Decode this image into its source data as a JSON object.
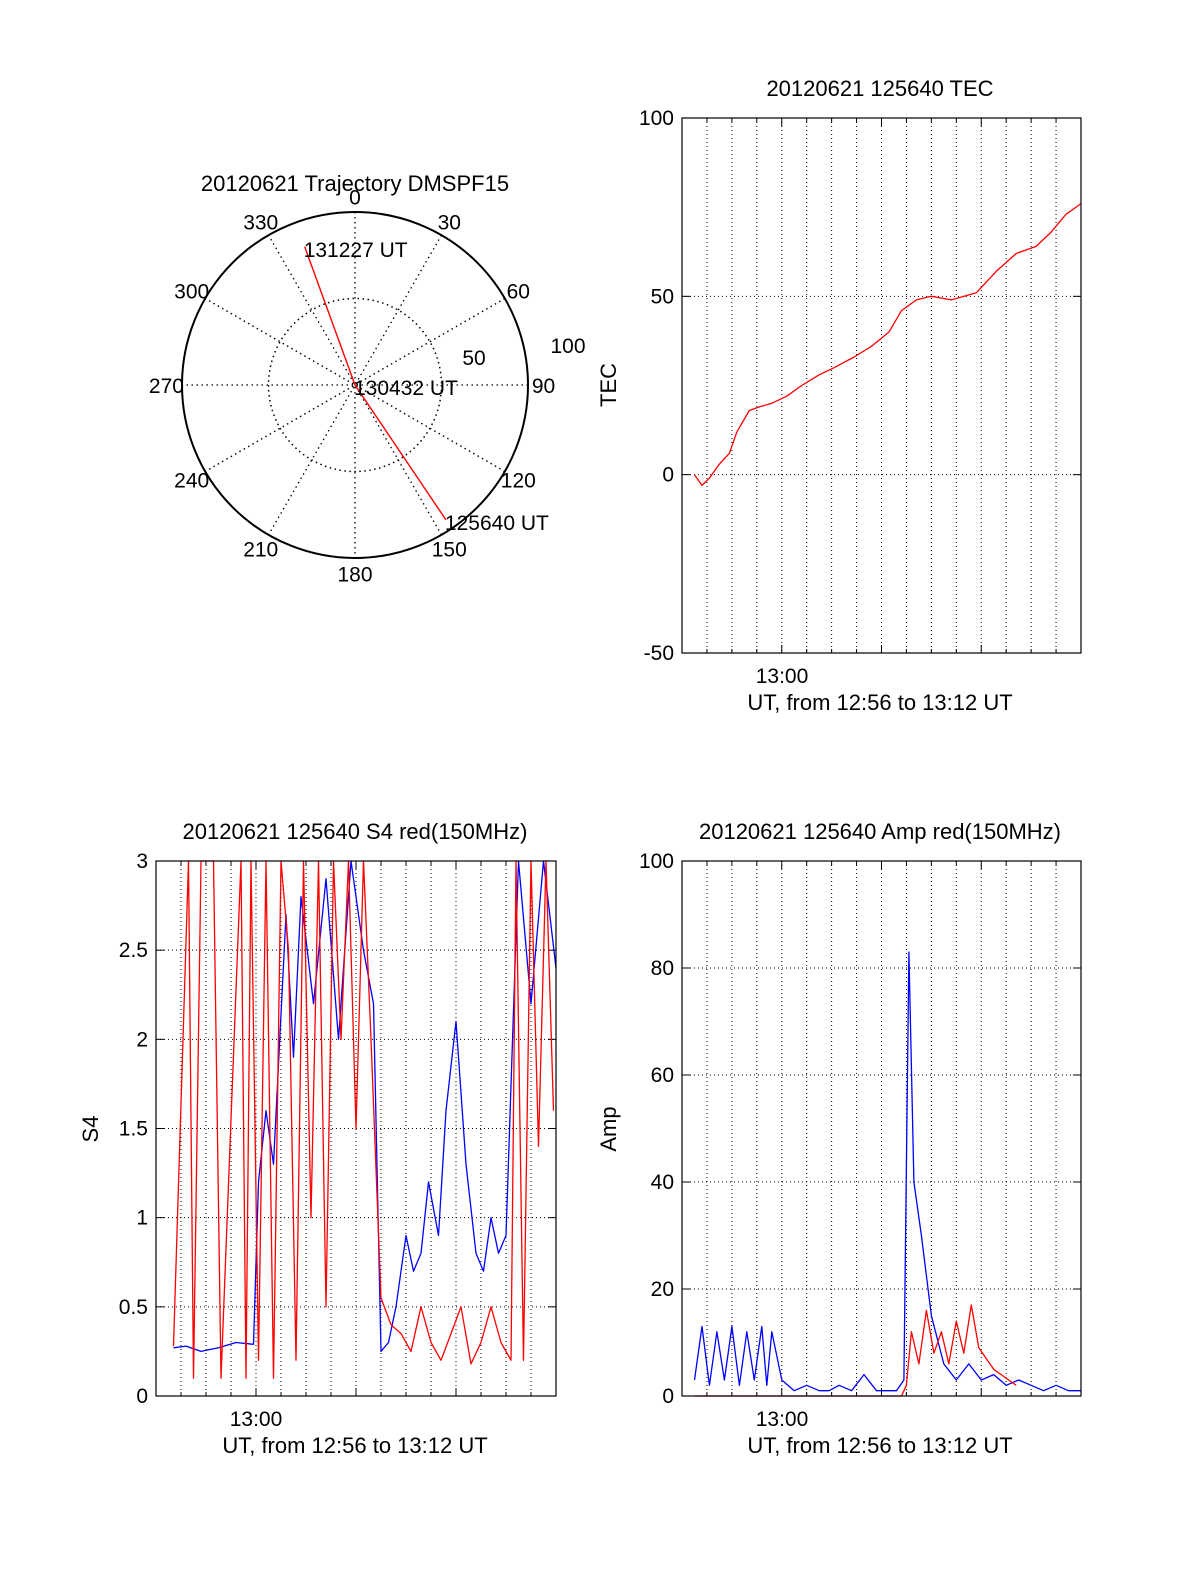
{
  "colors": {
    "red": "#ff0000",
    "blue": "#0000ff",
    "axis": "#000000",
    "grid": "#000000"
  },
  "chart_data": [
    {
      "type": "scatter",
      "subtype": "polar",
      "title": "20120621 Trajectory DMSPF15",
      "angle_labels": [
        "0",
        "30",
        "60",
        "90",
        "120",
        "150",
        "180",
        "210",
        "240",
        "270",
        "300",
        "330"
      ],
      "radial_labels": [
        "50",
        "100"
      ],
      "rlim": [
        0,
        100
      ],
      "grid": true,
      "series": [
        {
          "color": "red",
          "points": [
            {
              "azimuth": 146,
              "radius": 94
            },
            {
              "azimuth": 0,
              "radius": 0
            },
            {
              "azimuth": 340,
              "radius": 85
            }
          ]
        }
      ],
      "annotations": [
        {
          "text": "131227 UT",
          "azimuth": 340,
          "radius": 85
        },
        {
          "text": "130432 UT",
          "azimuth": 0,
          "radius": 0
        },
        {
          "text": "125640 UT",
          "azimuth": 146,
          "radius": 94
        }
      ]
    },
    {
      "type": "line",
      "title": "20120621 125640 TEC",
      "xlabel": "UT, from 12:56 to 13:12 UT",
      "ylabel": "TEC",
      "xtick_labels": [
        "13:00"
      ],
      "xlim": [
        0,
        16
      ],
      "ylim": [
        -50,
        100
      ],
      "yticks": [
        -50,
        0,
        50,
        100
      ],
      "grid": true,
      "series": [
        {
          "color": "red",
          "x": [
            0.5,
            0.8,
            1.1,
            1.5,
            1.9,
            2.2,
            2.7,
            3.1,
            3.6,
            4.2,
            4.8,
            5.5,
            6.1,
            6.9,
            7.6,
            8.3,
            8.8,
            9.4,
            10.0,
            10.8,
            11.8,
            12.6,
            13.4,
            14.2,
            14.8,
            15.4,
            16.0
          ],
          "y": [
            0,
            -3,
            -1,
            3,
            6,
            12,
            18,
            19,
            20,
            22,
            25,
            28,
            30,
            33,
            36,
            40,
            46,
            49,
            50,
            49,
            51,
            57,
            62,
            64,
            68,
            73,
            76
          ]
        }
      ]
    },
    {
      "type": "line",
      "title": "20120621 125640 S4 red(150MHz)",
      "xlabel": "UT, from 12:56 to 13:12 UT",
      "ylabel": "S4",
      "xtick_labels": [
        "13:00"
      ],
      "xlim": [
        0,
        16
      ],
      "ylim": [
        0,
        3
      ],
      "yticks": [
        "0",
        "0.5",
        "1",
        "1.5",
        "2",
        "2.5",
        "3"
      ],
      "grid": true,
      "series": [
        {
          "color": "blue",
          "x": [
            0.7,
            1.2,
            1.8,
            2.5,
            3.2,
            3.9,
            4.1,
            4.4,
            4.7,
            5.2,
            5.5,
            5.8,
            6.3,
            6.8,
            7.3,
            7.8,
            8.3,
            8.7,
            9.0,
            9.3,
            9.6,
            10.0,
            10.3,
            10.6,
            10.9,
            11.3,
            11.6,
            12.0,
            12.4,
            12.8,
            13.1,
            13.4,
            13.7,
            14.0,
            14.5,
            15.0,
            15.5,
            16.0
          ],
          "y": [
            0.27,
            0.28,
            0.25,
            0.27,
            0.3,
            0.29,
            1.2,
            1.6,
            1.3,
            2.7,
            1.9,
            2.8,
            2.2,
            2.9,
            2.0,
            3.0,
            2.5,
            2.2,
            0.25,
            0.3,
            0.5,
            0.9,
            0.7,
            0.8,
            1.2,
            0.9,
            1.6,
            2.1,
            1.3,
            0.8,
            0.7,
            1.0,
            0.8,
            0.9,
            3.0,
            2.2,
            3.0,
            2.4
          ]
        },
        {
          "color": "red",
          "x": [
            0.7,
            1.3,
            1.5,
            1.8,
            2.3,
            2.6,
            3.4,
            3.6,
            3.8,
            4.1,
            4.4,
            4.7,
            5.0,
            5.3,
            5.6,
            5.9,
            6.2,
            6.5,
            6.8,
            7.1,
            7.4,
            7.7,
            8.0,
            8.3,
            8.6,
            9.0,
            9.4,
            9.8,
            10.2,
            10.6,
            11.0,
            11.4,
            11.8,
            12.2,
            12.6,
            13.0,
            13.4,
            13.8,
            14.2,
            14.4,
            14.7,
            15.0,
            15.3,
            15.6,
            15.9
          ],
          "y": [
            0.28,
            3.0,
            0.1,
            3.0,
            3.0,
            0.1,
            3.0,
            0.1,
            3.0,
            0.2,
            3.0,
            0.1,
            3.0,
            2.5,
            0.2,
            3.0,
            1.0,
            3.0,
            0.5,
            3.0,
            2.0,
            3.0,
            1.5,
            3.0,
            2.0,
            0.55,
            0.4,
            0.35,
            0.25,
            0.5,
            0.3,
            0.2,
            0.35,
            0.5,
            0.18,
            0.3,
            0.5,
            0.3,
            0.2,
            3.0,
            0.2,
            3.0,
            1.4,
            3.0,
            1.6
          ]
        }
      ]
    },
    {
      "type": "line",
      "title": "20120621 125640 Amp red(150MHz)",
      "xlabel": "UT, from 12:56 to 13:12 UT",
      "ylabel": "Amp",
      "xtick_labels": [
        "13:00"
      ],
      "xlim": [
        0,
        16
      ],
      "ylim": [
        0,
        100
      ],
      "yticks": [
        0,
        20,
        40,
        60,
        80,
        100
      ],
      "grid": true,
      "series": [
        {
          "color": "blue",
          "x": [
            0.5,
            0.8,
            1.1,
            1.4,
            1.7,
            2.0,
            2.3,
            2.6,
            2.9,
            3.2,
            3.4,
            3.6,
            4.0,
            4.5,
            5.0,
            5.5,
            5.9,
            6.3,
            6.8,
            7.3,
            7.8,
            8.3,
            8.6,
            8.9,
            9.1,
            9.3,
            9.6,
            10.0,
            10.5,
            11.0,
            11.5,
            12.0,
            12.5,
            13.0,
            13.5,
            14.0,
            14.5,
            15.0,
            15.5,
            16.0
          ],
          "y": [
            3,
            13,
            2,
            12,
            3,
            13,
            2,
            12,
            3,
            13,
            2,
            12,
            3,
            1,
            2,
            1,
            1,
            2,
            1,
            4,
            1,
            1,
            1,
            3,
            83,
            40,
            30,
            15,
            6,
            3,
            6,
            3,
            4,
            2,
            3,
            2,
            1,
            2,
            1,
            1
          ]
        },
        {
          "color": "red",
          "x": [
            0.5,
            2.0,
            3.5,
            5.0,
            7.0,
            8.8,
            9.0,
            9.2,
            9.5,
            9.8,
            10.1,
            10.4,
            10.7,
            11.0,
            11.3,
            11.6,
            11.9,
            12.2,
            12.5,
            12.8,
            13.1,
            13.4
          ],
          "y": [
            0,
            0,
            0,
            0,
            0,
            0,
            2,
            12,
            6,
            16,
            8,
            12,
            6,
            14,
            8,
            17,
            9,
            7,
            5,
            4,
            3,
            2
          ]
        }
      ]
    }
  ]
}
